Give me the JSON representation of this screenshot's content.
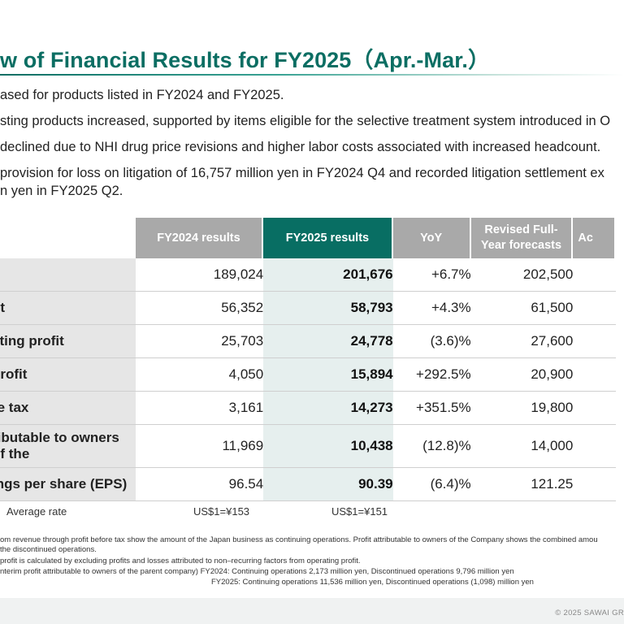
{
  "title": "w of Financial Results for FY2025（Apr.-Mar.）",
  "bullets": [
    "ased for products listed in FY2024 and FY2025.",
    "sting products increased, supported by items eligible for the selective treatment system introduced in O",
    "declined due to NHI drug price revisions and higher labor costs associated with increased headcount.",
    " provision for loss on litigation of 16,757 million yen in FY2024 Q4 and recorded litigation settlement ex",
    "n yen in FY2025 Q2."
  ],
  "table": {
    "headers": [
      "FY2024 results",
      "FY2025 results",
      "YoY",
      "Revised Full-Year forecasts",
      "Ac"
    ],
    "rows": [
      {
        "label": "",
        "fy2024": "189,024",
        "fy2025": "201,676",
        "yoy": "+6.7%",
        "forecast": "202,500"
      },
      {
        "label": "fit",
        "fy2024": "56,352",
        "fy2025": "58,793",
        "yoy": "+4.3%",
        "forecast": "61,500"
      },
      {
        "label": "ating profit",
        "fy2024": "25,703",
        "fy2025": "24,778",
        "yoy": "(3.6)%",
        "forecast": "27,600"
      },
      {
        "label": "profit",
        "fy2024": "4,050",
        "fy2025": "15,894",
        "yoy": "+292.5%",
        "forecast": "20,900"
      },
      {
        "label": "re tax",
        "fy2024": "3,161",
        "fy2025": "14,273",
        "yoy": "+351.5%",
        "forecast": "19,800"
      },
      {
        "label": "ributable to owners of the",
        "fy2024": "11,969",
        "fy2025": "10,438",
        "yoy": "(12.8)%",
        "forecast": "14,000"
      },
      {
        "label": "ings per share (EPS)",
        "fy2024": "96.54",
        "fy2025": "90.39",
        "yoy": "(6.4)%",
        "forecast": "121.25"
      }
    ]
  },
  "average_rate": {
    "label": "Average rate",
    "fy2024": "US$1=¥153",
    "fy2025": "US$1=¥151"
  },
  "notes": [
    "om revenue through profit before tax show the amount of the Japan business as continuing operations. Profit attributable to owners of the Company shows the combined amou",
    "the discontinued operations.",
    "profit is calculated by excluding profits and losses attributed to non–recurring factors from operating profit.",
    "nterim profit attributable to owners of the parent company)  FY2024: Continuing operations 2,173 million yen, Discontinued operations 9,796 million yen",
    "FY2025: Continuing operations 11,536 million yen, Discontinued operations (1,098) million yen"
  ],
  "copyright": "© 2025 SAWAI GR",
  "colors": {
    "brand_teal": "#0b6e63",
    "header_gray": "#a9a9a9",
    "highlight_column": "#e6efee"
  }
}
